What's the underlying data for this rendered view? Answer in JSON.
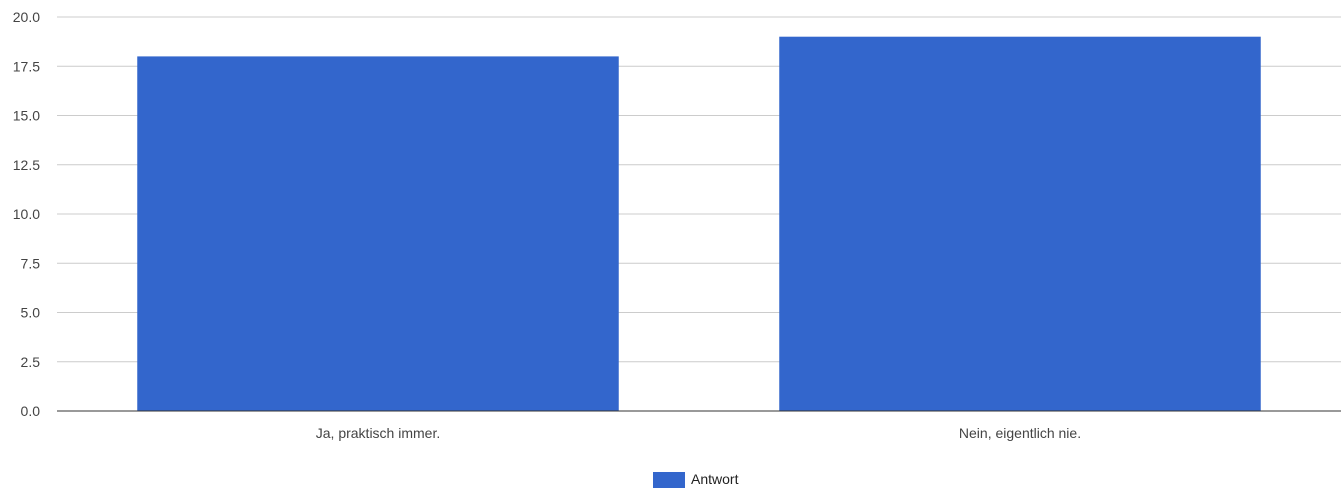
{
  "chart_data": {
    "type": "bar",
    "categories": [
      "Ja, praktisch immer.",
      "Nein, eigentlich nie."
    ],
    "series": [
      {
        "name": "Antwort",
        "values": [
          18,
          19
        ],
        "color": "#3366cc"
      }
    ],
    "y_ticks": [
      "0.0",
      "2.5",
      "5.0",
      "7.5",
      "10.0",
      "12.5",
      "15.0",
      "17.5",
      "20.0"
    ],
    "ylim": [
      0,
      20
    ],
    "grid": true,
    "legend_position": "bottom"
  }
}
